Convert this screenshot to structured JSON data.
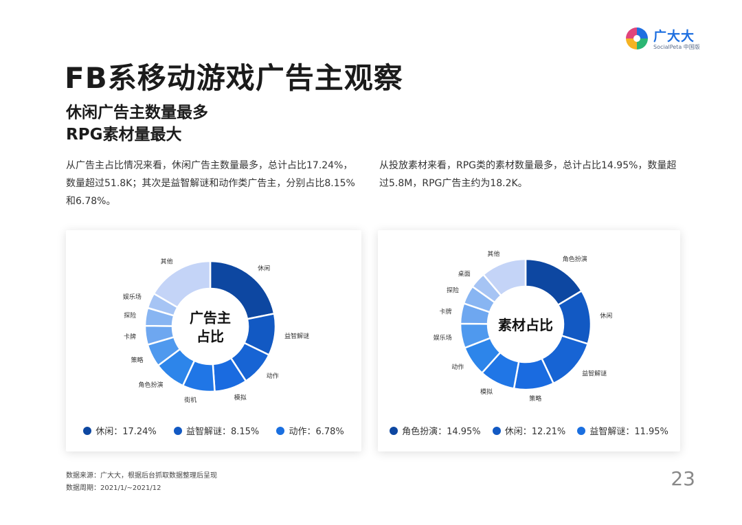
{
  "brand": {
    "name": "广大大",
    "sub": "SocialPeta 中国版",
    "colors": [
      "#1e6fe0",
      "#e0457b",
      "#2bb673",
      "#f5b323"
    ]
  },
  "page_title": "FB系移动游戏广告主观察",
  "subtitle": {
    "line1": "休闲广告主数量最多",
    "line2": "RPG素材量最大"
  },
  "desc_left": "从广告主占比情况来看，休闲广告主数量最多，总计占比17.24%，数量超过51.8K；其次是益智解谜和动作类广告主，分别占比8.15%和6.78%。",
  "desc_right": "从投放素材来看，RPG类的素材数量最多，总计占比14.95%，数量超过5.8M，RPG广告主约为18.2K。",
  "watermark": "广大大",
  "chart_data": [
    {
      "type": "pie",
      "title": "广告主\n占比",
      "categories": [
        "休闲",
        "益智解谜",
        "动作",
        "模拟",
        "街机",
        "角色扮演",
        "策略",
        "卡牌",
        "探险",
        "娱乐场",
        "其他"
      ],
      "values": [
        17.24,
        8.15,
        6.78,
        6.4,
        6.3,
        6.2,
        4.5,
        3.7,
        3.5,
        3.0,
        13.1
      ],
      "colors": [
        "#0d47a1",
        "#1259c3",
        "#1764d4",
        "#1a6be0",
        "#2076e6",
        "#2d85ea",
        "#4f99ee",
        "#6ea7f0",
        "#88b5f2",
        "#a6c4f4",
        "#c4d4f7"
      ],
      "legend": [
        {
          "label": "休闲：17.24%",
          "color": "#0d47a1"
        },
        {
          "label": "益智解谜：8.15%",
          "color": "#1259c3"
        },
        {
          "label": "动作：6.78%",
          "color": "#1a6fe0"
        }
      ]
    },
    {
      "type": "pie",
      "title": "素材占比",
      "categories": [
        "角色扮演",
        "休闲",
        "益智解谜",
        "策略",
        "模拟",
        "动作",
        "娱乐场",
        "卡牌",
        "探险",
        "桌面",
        "其他"
      ],
      "values": [
        14.95,
        12.21,
        11.95,
        9.0,
        8.0,
        6.8,
        5.5,
        4.6,
        4.2,
        3.6,
        10.2
      ],
      "colors": [
        "#0d47a1",
        "#1259c3",
        "#1764d4",
        "#1a6be0",
        "#2076e6",
        "#2d85ea",
        "#4f99ee",
        "#6ea7f0",
        "#88b5f2",
        "#a6c4f4",
        "#c4d4f7"
      ],
      "legend": [
        {
          "label": "角色扮演：14.95%",
          "color": "#0d47a1"
        },
        {
          "label": "休闲：12.21%",
          "color": "#1259c3"
        },
        {
          "label": "益智解谜：11.95%",
          "color": "#1a6fe0"
        }
      ]
    }
  ],
  "footnote": {
    "source": "数据来源：广大大，根据后台抓取数据整理后呈现",
    "period": "数据周期：2021/1/~2021/12"
  },
  "page_number": "23"
}
